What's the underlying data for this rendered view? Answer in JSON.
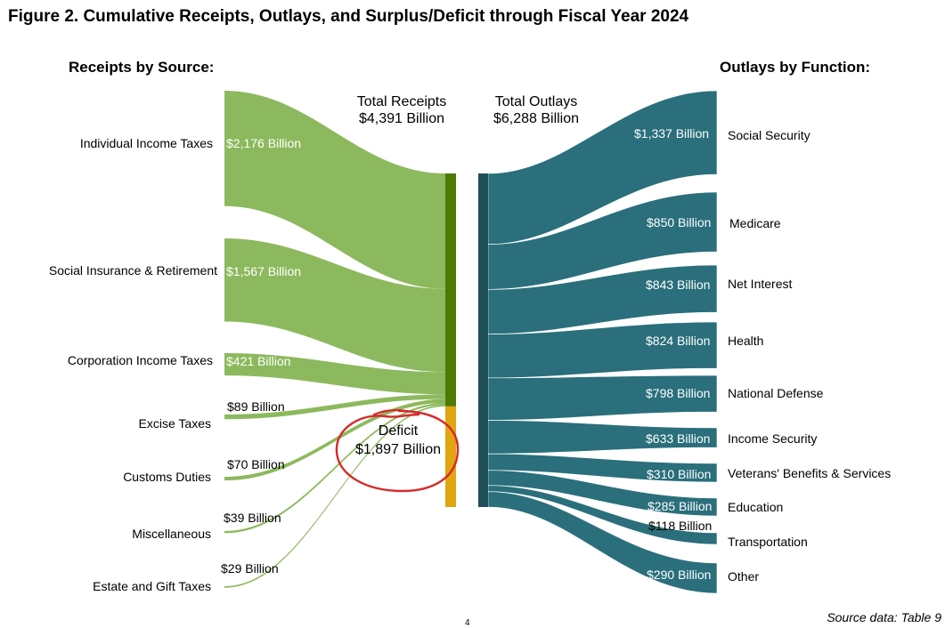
{
  "title": "Figure 2. Cumulative Receipts, Outlays, and Surplus/Deficit through Fiscal Year 2024",
  "receipts_header": "Receipts by Source:",
  "outlays_header": "Outlays by Function:",
  "total_receipts": {
    "line1": "Total Receipts",
    "line2": "$4,391 Billion"
  },
  "total_outlays": {
    "line1": "Total Outlays",
    "line2": "$6,288 Billion"
  },
  "deficit": {
    "line1": "Deficit",
    "line2": "$1,897 Billion"
  },
  "footer": "Source data: Table 9",
  "page_number": "4",
  "colors": {
    "receipts": "#8cb95d",
    "receipts_bar": "#4e7a05",
    "deficit_bar": "#e1a512",
    "outlays": "#2a6f7b",
    "outlays_bar": "#1f4f57",
    "annotation": "#d62828"
  },
  "chart_data": {
    "type": "sankey",
    "title": "Figure 2. Cumulative Receipts, Outlays, and Surplus/Deficit through Fiscal Year 2024",
    "units": "Billion",
    "receipts": [
      {
        "name": "Individual Income Taxes",
        "value": 2176,
        "label": "$2,176 Billion"
      },
      {
        "name": "Social Insurance & Retirement",
        "value": 1567,
        "label": "$1,567 Billion"
      },
      {
        "name": "Corporation Income Taxes",
        "value": 421,
        "label": "$421 Billion"
      },
      {
        "name": "Excise Taxes",
        "value": 89,
        "label": "$89 Billion"
      },
      {
        "name": "Customs Duties",
        "value": 70,
        "label": "$70 Billion"
      },
      {
        "name": "Miscellaneous",
        "value": 39,
        "label": "$39 Billion"
      },
      {
        "name": "Estate and Gift Taxes",
        "value": 29,
        "label": "$29 Billion"
      }
    ],
    "outlays": [
      {
        "name": "Social Security",
        "value": 1337,
        "label": "$1,337 Billion"
      },
      {
        "name": "Medicare",
        "value": 850,
        "label": "$850 Billion"
      },
      {
        "name": "Net Interest",
        "value": 843,
        "label": "$843 Billion"
      },
      {
        "name": "Health",
        "value": 824,
        "label": "$824 Billion"
      },
      {
        "name": "National Defense",
        "value": 798,
        "label": "$798 Billion"
      },
      {
        "name": "Income Security",
        "value": 633,
        "label": "$633 Billion"
      },
      {
        "name": "Veterans' Benefits & Services",
        "value": 310,
        "label": "$310 Billion"
      },
      {
        "name": "Education",
        "value": 285,
        "label": "$285 Billion"
      },
      {
        "name": "Transportation",
        "value": 118,
        "label": "$118 Billion"
      },
      {
        "name": "Other",
        "value": 290,
        "label": "$290 Billion"
      }
    ],
    "total_receipts": 4391,
    "total_outlays": 6288,
    "deficit": 1897
  }
}
